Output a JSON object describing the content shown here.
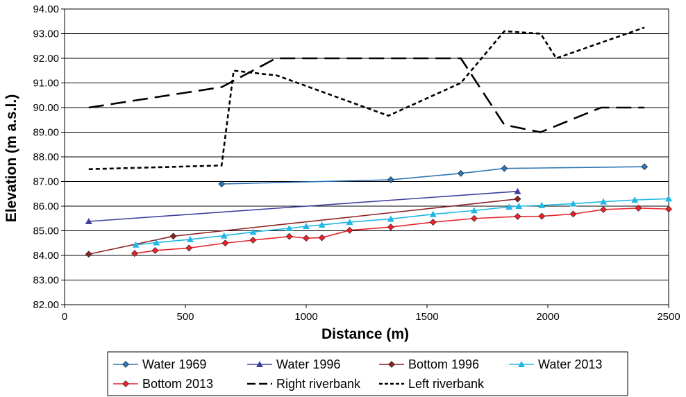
{
  "chart_data": {
    "type": "line",
    "xlabel": "Distance  (m)",
    "ylabel": "Elevation (m a.s.l.)",
    "xlim": [
      0,
      2500
    ],
    "ylim": [
      82.0,
      94.0
    ],
    "x_ticks": [
      0,
      500,
      1000,
      1500,
      2000,
      2500
    ],
    "y_ticks": [
      82,
      83,
      84,
      85,
      86,
      87,
      88,
      89,
      90,
      91,
      92,
      93,
      94
    ],
    "x_tick_labels": [
      "0",
      "500",
      "1000",
      "1500",
      "2000",
      "2500"
    ],
    "y_tick_labels": [
      "82.00",
      "83.00",
      "84.00",
      "85.00",
      "86.00",
      "87.00",
      "88.00",
      "89.00",
      "90.00",
      "91.00",
      "92.00",
      "93.00",
      "94.00"
    ],
    "grid": "horizontal",
    "legend_position": "bottom",
    "series": [
      {
        "name": "Water 1969",
        "color": "#2e75b6",
        "marker": "diamond",
        "dash": "solid",
        "x": [
          650,
          1350,
          1640,
          1820,
          2400
        ],
        "y": [
          86.9,
          87.07,
          87.33,
          87.53,
          87.6
        ]
      },
      {
        "name": "Water 1996",
        "color": "#3f3fa0",
        "marker": "triangle",
        "dash": "solid",
        "x": [
          100,
          1875
        ],
        "y": [
          85.38,
          86.6
        ]
      },
      {
        "name": "Bottom 1996",
        "color": "#8b2323",
        "marker": "diamond",
        "dash": "solid",
        "x": [
          100,
          450,
          1875
        ],
        "y": [
          84.05,
          84.78,
          86.29
        ]
      },
      {
        "name": "Water 2013",
        "color": "#1fb7e6",
        "marker": "triangle",
        "dash": "solid",
        "x": [
          295,
          380,
          520,
          660,
          780,
          930,
          1000,
          1065,
          1180,
          1350,
          1525,
          1695,
          1840,
          1880,
          1975,
          2105,
          2230,
          2360,
          2500
        ],
        "y": [
          84.43,
          84.52,
          84.65,
          84.8,
          84.95,
          85.1,
          85.18,
          85.24,
          85.35,
          85.48,
          85.67,
          85.82,
          85.97,
          86.0,
          86.03,
          86.1,
          86.18,
          86.25,
          86.3
        ]
      },
      {
        "name": "Bottom 2013",
        "color": "#e8232d",
        "marker": "diamond",
        "dash": "solid",
        "x": [
          290,
          375,
          515,
          665,
          780,
          930,
          1000,
          1065,
          1180,
          1350,
          1525,
          1695,
          1875,
          1975,
          2105,
          2230,
          2375,
          2500
        ],
        "y": [
          84.08,
          84.2,
          84.3,
          84.5,
          84.62,
          84.77,
          84.7,
          84.72,
          85.02,
          85.15,
          85.35,
          85.5,
          85.58,
          85.59,
          85.68,
          85.86,
          85.92,
          85.88
        ]
      },
      {
        "name": "Right riverbank",
        "color": "#000000",
        "marker": "none",
        "dash": "long",
        "x": [
          100,
          650,
          875,
          1640,
          1820,
          1970,
          2220,
          2400
        ],
        "y": [
          90.0,
          90.83,
          92.0,
          92.0,
          89.3,
          89.0,
          90.0,
          90.0
        ]
      },
      {
        "name": "Left riverbank",
        "color": "#000000",
        "marker": "none",
        "dash": "short",
        "x": [
          100,
          650,
          700,
          880,
          1340,
          1640,
          1820,
          1970,
          2035,
          2400
        ],
        "y": [
          87.5,
          87.65,
          91.5,
          91.3,
          89.67,
          91.0,
          93.1,
          93.0,
          92.0,
          93.25
        ]
      }
    ],
    "legend_rows": [
      [
        "Water 1969",
        "Water 1996",
        "Bottom 1996",
        "Water 2013"
      ],
      [
        "Bottom 2013",
        "Right riverbank",
        "Left riverbank"
      ]
    ]
  }
}
